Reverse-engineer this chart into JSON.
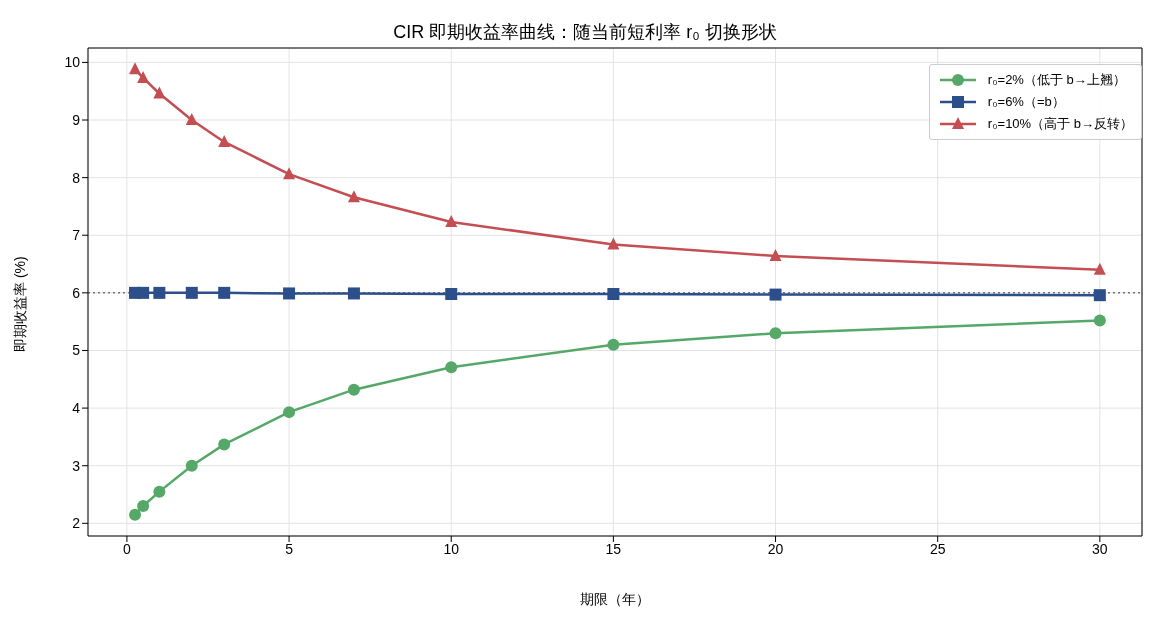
{
  "chart_data": {
    "type": "line",
    "title": "CIR 即期收益率曲线：随当前短利率 r₀ 切换形状",
    "xlabel": "期限（年）",
    "ylabel": "即期收益率 (%)",
    "x": [
      0.25,
      0.5,
      1,
      2,
      3,
      5,
      7,
      10,
      15,
      20,
      30
    ],
    "series": [
      {
        "name": "r₀=2%（低于 b→上翘）",
        "color": "#55a868",
        "marker": "circle",
        "values": [
          2.15,
          2.3,
          2.55,
          3.0,
          3.37,
          3.93,
          4.32,
          4.71,
          5.1,
          5.3,
          5.52
        ]
      },
      {
        "name": "r₀=6%（=b）",
        "color": "#2c4f8c",
        "marker": "square",
        "values": [
          6.0,
          6.0,
          6.0,
          6.0,
          6.0,
          5.99,
          5.99,
          5.98,
          5.98,
          5.97,
          5.96
        ]
      },
      {
        "name": "r₀=10%（高于 b→反转）",
        "color": "#c44e52",
        "marker": "triangle",
        "values": [
          9.88,
          9.73,
          9.46,
          9.0,
          8.62,
          8.06,
          7.66,
          7.23,
          6.84,
          6.64,
          6.4
        ]
      }
    ],
    "xlim": [
      -1.2,
      31.3
    ],
    "xticks": [
      0,
      5,
      10,
      15,
      20,
      25,
      30
    ],
    "ylim": [
      1.78,
      10.25
    ],
    "yticks": [
      2,
      3,
      4,
      5,
      6,
      7,
      8,
      9,
      10
    ],
    "ref_lines": [
      {
        "axis": "y",
        "value": 6,
        "color": "#777777",
        "line_style": "dotted"
      }
    ],
    "grid": true,
    "legend": "top right",
    "line_style": "solid"
  }
}
